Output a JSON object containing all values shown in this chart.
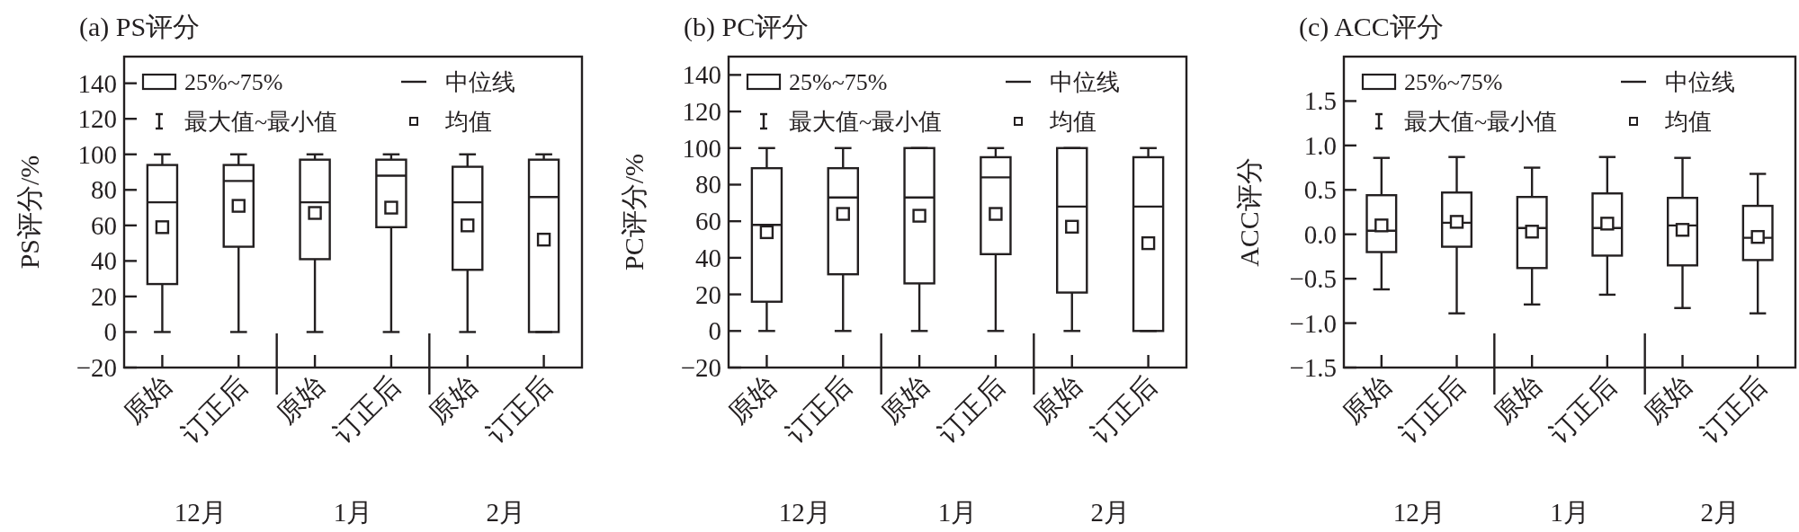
{
  "chart_data": [
    {
      "type": "box",
      "title": "(a) PS评分",
      "ylabel": "PS评分/%",
      "categories": [
        "原始",
        "订正后",
        "原始",
        "订正后",
        "原始",
        "订正后"
      ],
      "ylim": [
        -20,
        155
      ],
      "yticks": [
        {
          "value": -20,
          "label": "−20"
        },
        0,
        20,
        40,
        60,
        80,
        100,
        120,
        140
      ],
      "boxes": [
        {
          "low": 0,
          "q1": 27,
          "median": 73,
          "q3": 94,
          "high": 100,
          "mean": 59
        },
        {
          "low": 0,
          "q1": 48,
          "median": 85,
          "q3": 94,
          "high": 100,
          "mean": 71
        },
        {
          "low": 0,
          "q1": 41,
          "median": 73,
          "q3": 97,
          "high": 100,
          "mean": 67
        },
        {
          "low": 0,
          "q1": 59,
          "median": 88,
          "q3": 97,
          "high": 100,
          "mean": 70
        },
        {
          "low": 0,
          "q1": 35,
          "median": 73,
          "q3": 93,
          "high": 100,
          "mean": 60
        },
        {
          "low": 0,
          "q1": 0,
          "median": 76,
          "q3": 97,
          "high": 100,
          "mean": 52
        }
      ],
      "annotations": [
        "25%~75%",
        "中位线",
        "最大值~最小值",
        "均值",
        "12月",
        "1月",
        "2月"
      ]
    },
    {
      "type": "box",
      "title": "(b) PC评分",
      "ylabel": "PC评分/%",
      "categories": [
        "原始",
        "订正后",
        "原始",
        "订正后",
        "原始",
        "订正后"
      ],
      "ylim": [
        -20,
        150
      ],
      "yticks": [
        {
          "value": -20,
          "label": "−20"
        },
        0,
        20,
        40,
        60,
        80,
        100,
        120,
        140
      ],
      "boxes": [
        {
          "low": 0,
          "q1": 16,
          "median": 58,
          "q3": 89,
          "high": 100,
          "mean": 54
        },
        {
          "low": 0,
          "q1": 31,
          "median": 73,
          "q3": 89,
          "high": 100,
          "mean": 64
        },
        {
          "low": 0,
          "q1": 26,
          "median": 73,
          "q3": 100,
          "high": 100,
          "mean": 63
        },
        {
          "low": 0,
          "q1": 42,
          "median": 84,
          "q3": 95,
          "high": 100,
          "mean": 64
        },
        {
          "low": 0,
          "q1": 21,
          "median": 68,
          "q3": 100,
          "high": 100,
          "mean": 57
        },
        {
          "low": 0,
          "q1": 0,
          "median": 68,
          "q3": 95,
          "high": 100,
          "mean": 48
        }
      ],
      "annotations": [
        "25%~75%",
        "中位线",
        "最大值~最小值",
        "均值",
        "12月",
        "1月",
        "2月"
      ]
    },
    {
      "type": "box",
      "title": "(c) ACC评分",
      "ylabel": "ACC评分",
      "categories": [
        "原始",
        "订正后",
        "原始",
        "订正后",
        "原始",
        "订正后"
      ],
      "ylim": [
        -1.5,
        2.0
      ],
      "yticks": [
        {
          "value": -1.5,
          "label": "−1.5"
        },
        {
          "value": -1,
          "label": "−1.0"
        },
        {
          "value": -0.5,
          "label": "−0.5"
        },
        {
          "value": 0,
          "label": "0.0"
        },
        {
          "value": 0.5,
          "label": "0.5"
        },
        {
          "value": 1,
          "label": "1.0"
        },
        {
          "value": 1.5,
          "label": "1.5"
        }
      ],
      "boxes": [
        {
          "low": -0.62,
          "q1": -0.2,
          "median": 0.04,
          "q3": 0.44,
          "high": 0.86,
          "mean": 0.1
        },
        {
          "low": -0.89,
          "q1": -0.14,
          "median": 0.13,
          "q3": 0.47,
          "high": 0.87,
          "mean": 0.14
        },
        {
          "low": -0.79,
          "q1": -0.38,
          "median": 0.07,
          "q3": 0.42,
          "high": 0.75,
          "mean": 0.03
        },
        {
          "low": -0.68,
          "q1": -0.24,
          "median": 0.07,
          "q3": 0.46,
          "high": 0.87,
          "mean": 0.12
        },
        {
          "low": -0.83,
          "q1": -0.35,
          "median": 0.1,
          "q3": 0.41,
          "high": 0.86,
          "mean": 0.05
        },
        {
          "low": -0.89,
          "q1": -0.29,
          "median": -0.04,
          "q3": 0.32,
          "high": 0.68,
          "mean": -0.03
        }
      ],
      "annotations": [
        "25%~75%",
        "中位线",
        "最大值~最小值",
        "均值",
        "12月",
        "1月",
        "2月"
      ]
    }
  ]
}
